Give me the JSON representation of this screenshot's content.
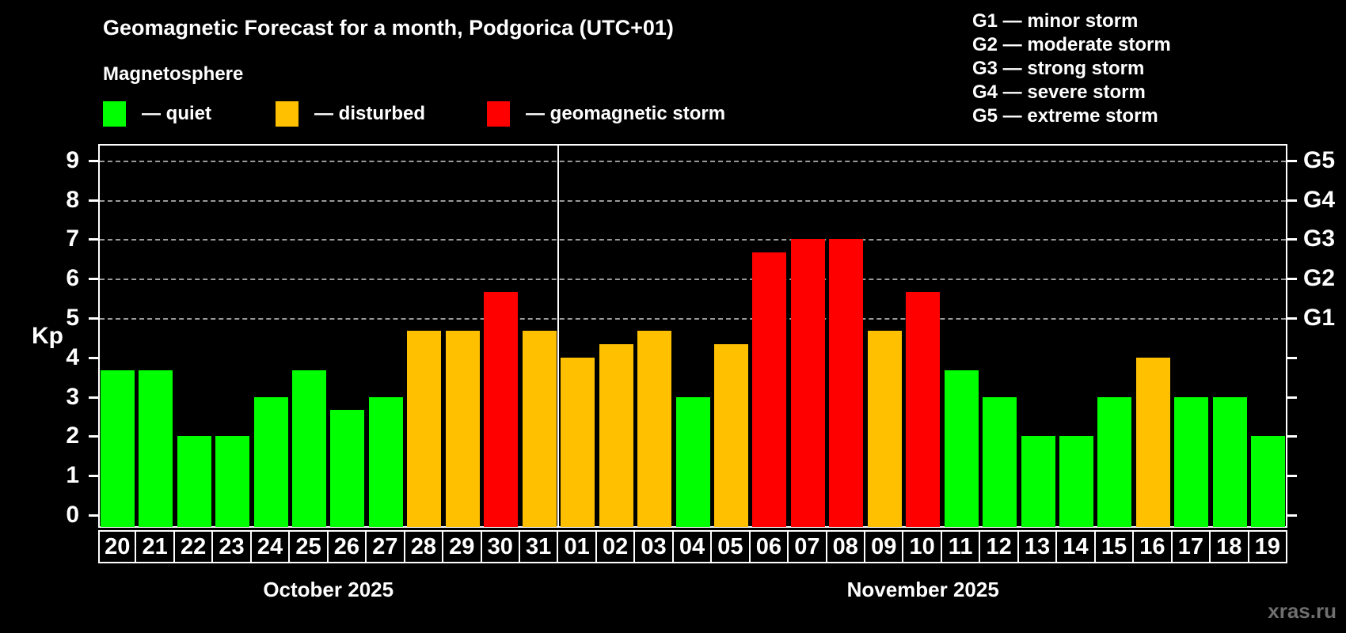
{
  "title": "Geomagnetic Forecast for a month, Podgorica (UTC+01)",
  "subtitle": "Magnetosphere",
  "legend": {
    "quiet_label": "— quiet",
    "disturbed_label": "— disturbed",
    "storm_label": "— geomagnetic storm"
  },
  "storm_scale": [
    "G1 — minor storm",
    "G2 — moderate storm",
    "G3 — strong storm",
    "G4 — severe storm",
    "G5 — extreme storm"
  ],
  "watermark": "xras.ru",
  "colors": {
    "quiet": "#00ff00",
    "disturbed": "#ffc000",
    "storm": "#ff0000",
    "background": "#000000",
    "grid": "#9a9a9a",
    "text": "#ffffff",
    "watermark": "#6f6f6f"
  },
  "chart_data": {
    "type": "bar",
    "title": "Geomagnetic Forecast for a month, Podgorica (UTC+01)",
    "ylabel": "Kp",
    "ylim": [
      0,
      9.5
    ],
    "y_ticks": [
      0,
      1,
      2,
      3,
      4,
      5,
      6,
      7,
      8,
      9
    ],
    "gridlines": [
      5,
      6,
      7,
      8,
      9
    ],
    "grid": "dashed, horizontal, Kp 5-9 only",
    "legend_position": "top-left",
    "right_axis": [
      {
        "kp": 5,
        "label": "G1"
      },
      {
        "kp": 6,
        "label": "G2"
      },
      {
        "kp": 7,
        "label": "G3"
      },
      {
        "kp": 8,
        "label": "G4"
      },
      {
        "kp": 9,
        "label": "G5"
      }
    ],
    "series": [
      {
        "month": "October 2025",
        "points": [
          {
            "day": "20",
            "kp": 3.67,
            "status": "quiet"
          },
          {
            "day": "21",
            "kp": 3.67,
            "status": "quiet"
          },
          {
            "day": "22",
            "kp": 2.0,
            "status": "quiet"
          },
          {
            "day": "23",
            "kp": 2.0,
            "status": "quiet"
          },
          {
            "day": "24",
            "kp": 3.0,
            "status": "quiet"
          },
          {
            "day": "25",
            "kp": 3.67,
            "status": "quiet"
          },
          {
            "day": "26",
            "kp": 2.67,
            "status": "quiet"
          },
          {
            "day": "27",
            "kp": 3.0,
            "status": "quiet"
          },
          {
            "day": "28",
            "kp": 4.67,
            "status": "disturbed"
          },
          {
            "day": "29",
            "kp": 4.67,
            "status": "disturbed"
          },
          {
            "day": "30",
            "kp": 5.67,
            "status": "storm"
          },
          {
            "day": "31",
            "kp": 4.67,
            "status": "disturbed"
          }
        ]
      },
      {
        "month": "November 2025",
        "points": [
          {
            "day": "01",
            "kp": 4.0,
            "status": "disturbed"
          },
          {
            "day": "02",
            "kp": 4.33,
            "status": "disturbed"
          },
          {
            "day": "03",
            "kp": 4.67,
            "status": "disturbed"
          },
          {
            "day": "04",
            "kp": 3.0,
            "status": "quiet"
          },
          {
            "day": "05",
            "kp": 4.33,
            "status": "disturbed"
          },
          {
            "day": "06",
            "kp": 6.67,
            "status": "storm"
          },
          {
            "day": "07",
            "kp": 7.0,
            "status": "storm"
          },
          {
            "day": "08",
            "kp": 7.0,
            "status": "storm"
          },
          {
            "day": "09",
            "kp": 4.67,
            "status": "disturbed"
          },
          {
            "day": "10",
            "kp": 5.67,
            "status": "storm"
          },
          {
            "day": "11",
            "kp": 3.67,
            "status": "quiet"
          },
          {
            "day": "12",
            "kp": 3.0,
            "status": "quiet"
          },
          {
            "day": "13",
            "kp": 2.0,
            "status": "quiet"
          },
          {
            "day": "14",
            "kp": 2.0,
            "status": "quiet"
          },
          {
            "day": "15",
            "kp": 3.0,
            "status": "quiet"
          },
          {
            "day": "16",
            "kp": 4.0,
            "status": "disturbed"
          },
          {
            "day": "17",
            "kp": 3.0,
            "status": "quiet"
          },
          {
            "day": "18",
            "kp": 3.0,
            "status": "quiet"
          },
          {
            "day": "19",
            "kp": 2.0,
            "status": "quiet"
          }
        ]
      }
    ]
  }
}
